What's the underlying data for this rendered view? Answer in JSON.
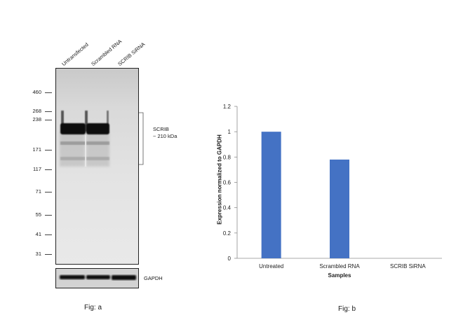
{
  "fig_a": {
    "lanes": [
      "Untransfected",
      "Scrambled RNA",
      "SCRIB SiRNA"
    ],
    "mw_markers": [
      "460",
      "268",
      "238",
      "171",
      "117",
      "71",
      "55",
      "41",
      "31"
    ],
    "band_label_line1": "SCRIB",
    "band_label_line2": "~ 210 kDa",
    "loading_control": "GAPDH",
    "caption": "Fig: a"
  },
  "fig_b": {
    "caption": "Fig: b",
    "chart_data": {
      "type": "bar",
      "categories": [
        "Untreated",
        "Scrambled RNA",
        "SCRIB SiRNA"
      ],
      "values": [
        1.0,
        0.78,
        0.0
      ],
      "xlabel": "Samples",
      "ylabel": "Expression normalized to GAPDH",
      "ylim": [
        0,
        1.2
      ],
      "yticks": [
        "0",
        "0.2",
        "0.4",
        "0.6",
        "0.8",
        "1",
        "1.2"
      ],
      "bar_color": "#4472c4",
      "grid": false
    }
  }
}
